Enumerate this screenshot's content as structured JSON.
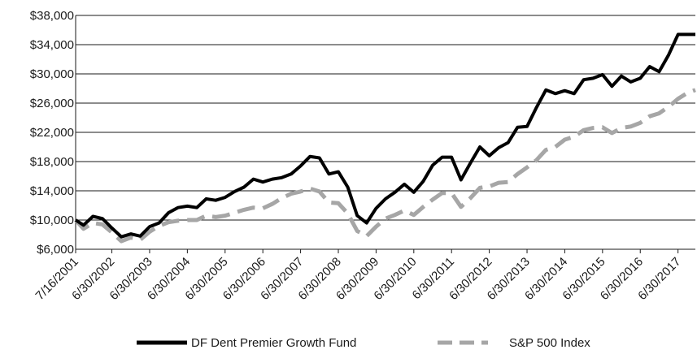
{
  "chart_data": {
    "type": "line",
    "title": "",
    "xlabel": "",
    "ylabel": "",
    "ylim": [
      6000,
      38000
    ],
    "y_ticks": [
      6000,
      10000,
      14000,
      18000,
      22000,
      26000,
      30000,
      34000,
      38000
    ],
    "y_tick_labels": [
      "$6,000",
      "$10,000",
      "$14,000",
      "$18,000",
      "$22,000",
      "$26,000",
      "$30,000",
      "$34,000",
      "$38,000"
    ],
    "x_range": [
      2001.54,
      2017.96
    ],
    "x_ticks": [
      2001.54,
      2002.5,
      2003.5,
      2004.5,
      2005.5,
      2006.5,
      2007.5,
      2008.5,
      2009.5,
      2010.5,
      2011.5,
      2012.5,
      2013.5,
      2014.5,
      2015.5,
      2016.5,
      2017.5
    ],
    "x_tick_labels": [
      "7/16/2001",
      "6/30/2002",
      "6/30/2003",
      "6/30/2004",
      "6/30/2005",
      "6/30/2006",
      "6/30/2007",
      "6/30/2008",
      "6/30/2009",
      "6/30/2010",
      "6/30/2011",
      "6/30/2012",
      "6/30/2013",
      "6/30/2014",
      "6/30/2015",
      "6/30/2016",
      "6/30/2017"
    ],
    "grid": "horizontal",
    "legend_position": "bottom",
    "series": [
      {
        "name": "DF Dent Premier Growth Fund",
        "color": "#000000",
        "style": "solid",
        "x": [
          2001.54,
          2001.75,
          2002.0,
          2002.25,
          2002.5,
          2002.75,
          2003.0,
          2003.25,
          2003.5,
          2003.75,
          2004.0,
          2004.25,
          2004.5,
          2004.75,
          2005.0,
          2005.25,
          2005.5,
          2005.75,
          2006.0,
          2006.25,
          2006.5,
          2006.75,
          2007.0,
          2007.25,
          2007.5,
          2007.75,
          2008.0,
          2008.25,
          2008.5,
          2008.75,
          2009.0,
          2009.25,
          2009.5,
          2009.75,
          2010.0,
          2010.25,
          2010.5,
          2010.75,
          2011.0,
          2011.25,
          2011.5,
          2011.75,
          2012.0,
          2012.25,
          2012.5,
          2012.75,
          2013.0,
          2013.25,
          2013.5,
          2013.75,
          2014.0,
          2014.25,
          2014.5,
          2014.75,
          2015.0,
          2015.25,
          2015.5,
          2015.75,
          2016.0,
          2016.25,
          2016.5,
          2016.75,
          2017.0,
          2017.25,
          2017.5,
          2017.75,
          2017.96
        ],
        "values": [
          10000,
          9300,
          10500,
          10200,
          8900,
          7700,
          8100,
          7800,
          9100,
          9600,
          11000,
          11700,
          11900,
          11700,
          12900,
          12700,
          13100,
          13900,
          14500,
          15600,
          15200,
          15600,
          15800,
          16300,
          17400,
          18700,
          18500,
          16300,
          16600,
          14500,
          10600,
          9600,
          11600,
          12900,
          13800,
          14900,
          13800,
          15300,
          17500,
          18600,
          18600,
          15500,
          17800,
          20000,
          18800,
          19900,
          20600,
          22700,
          22800,
          25400,
          27800,
          27300,
          27700,
          27300,
          29200,
          29400,
          29900,
          28300,
          29700,
          28900,
          29400,
          31000,
          30300,
          32600,
          35400,
          35400,
          35400
        ]
      },
      {
        "name": "S&P 500 Index",
        "color": "#a6a6a6",
        "style": "dashed",
        "x": [
          2001.54,
          2001.75,
          2002.0,
          2002.25,
          2002.5,
          2002.75,
          2003.0,
          2003.25,
          2003.5,
          2003.75,
          2004.0,
          2004.25,
          2004.5,
          2004.75,
          2005.0,
          2005.25,
          2005.5,
          2005.75,
          2006.0,
          2006.25,
          2006.5,
          2006.75,
          2007.0,
          2007.25,
          2007.5,
          2007.75,
          2008.0,
          2008.25,
          2008.5,
          2008.75,
          2009.0,
          2009.25,
          2009.5,
          2009.75,
          2010.0,
          2010.25,
          2010.5,
          2010.75,
          2011.0,
          2011.25,
          2011.5,
          2011.75,
          2012.0,
          2012.25,
          2012.5,
          2012.75,
          2013.0,
          2013.25,
          2013.5,
          2013.75,
          2014.0,
          2014.25,
          2014.5,
          2014.75,
          2015.0,
          2015.25,
          2015.5,
          2015.75,
          2016.0,
          2016.25,
          2016.5,
          2016.75,
          2017.0,
          2017.25,
          2017.5,
          2017.75,
          2017.96
        ],
        "values": [
          10000,
          8800,
          9600,
          9400,
          8300,
          7100,
          7600,
          7300,
          8400,
          9200,
          9700,
          9900,
          10000,
          10000,
          10600,
          10400,
          10600,
          11000,
          11400,
          11700,
          11600,
          12200,
          13000,
          13600,
          13900,
          14300,
          13900,
          12400,
          12300,
          10900,
          8500,
          7800,
          9100,
          10200,
          10700,
          11300,
          10700,
          11800,
          12800,
          13700,
          13700,
          11800,
          13000,
          14400,
          14600,
          15100,
          15200,
          16300,
          17200,
          18200,
          19600,
          20000,
          21000,
          21400,
          22300,
          22600,
          22700,
          21900,
          22600,
          22800,
          23300,
          24200,
          24600,
          25500,
          26600,
          27400,
          27800
        ]
      }
    ]
  }
}
